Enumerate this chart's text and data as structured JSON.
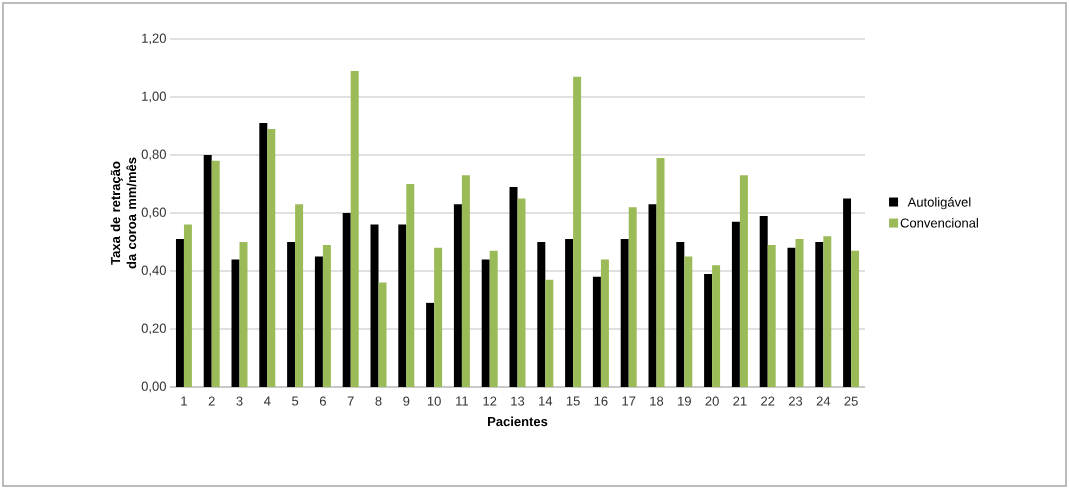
{
  "chart_data": {
    "type": "bar",
    "xlabel": "Pacientes",
    "ylabel": "Taxa de retração da coroa mm/mês",
    "categories": [
      "1",
      "2",
      "3",
      "4",
      "5",
      "6",
      "7",
      "8",
      "9",
      "10",
      "11",
      "12",
      "13",
      "14",
      "15",
      "16",
      "17",
      "18",
      "19",
      "20",
      "21",
      "22",
      "23",
      "24",
      "25"
    ],
    "series": [
      {
        "name": "Autoligável",
        "color": "#000000",
        "values": [
          0.51,
          0.8,
          0.44,
          0.91,
          0.5,
          0.45,
          0.6,
          0.56,
          0.56,
          0.29,
          0.63,
          0.44,
          0.69,
          0.5,
          0.51,
          0.38,
          0.51,
          0.63,
          0.5,
          0.39,
          0.57,
          0.59,
          0.48,
          0.5,
          0.65
        ]
      },
      {
        "name": "Convencional",
        "color": "#9bbb59",
        "values": [
          0.56,
          0.78,
          0.5,
          0.89,
          0.63,
          0.49,
          1.09,
          0.36,
          0.7,
          0.48,
          0.73,
          0.47,
          0.65,
          0.37,
          1.07,
          0.44,
          0.62,
          0.79,
          0.45,
          0.42,
          0.73,
          0.49,
          0.51,
          0.52,
          0.47
        ]
      }
    ],
    "ylim": [
      0,
      1.2
    ],
    "yticks": [
      {
        "value": 0,
        "label": "0,00"
      },
      {
        "value": 0.2,
        "label": "0,20"
      },
      {
        "value": 0.4,
        "label": "0,40"
      },
      {
        "value": 0.6,
        "label": "0,60"
      },
      {
        "value": 0.8,
        "label": "0,80"
      },
      {
        "value": 1.0,
        "label": "1,00"
      },
      {
        "value": 1.2,
        "label": "1,20"
      }
    ],
    "grid": "y",
    "legend": "right"
  }
}
